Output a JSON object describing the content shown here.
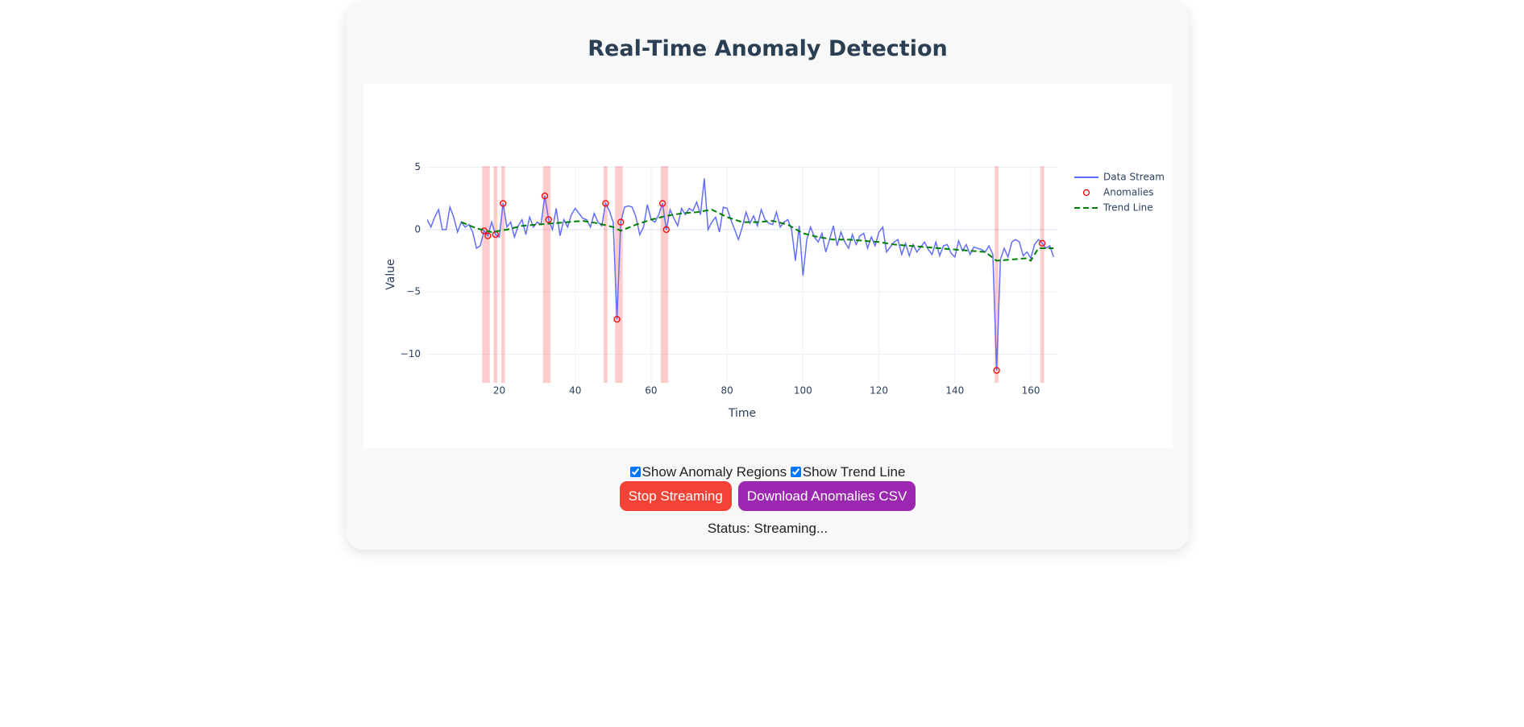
{
  "title": "Real-Time Anomaly Detection",
  "chart_data": {
    "type": "line",
    "x_label": "Time",
    "y_label": "Value",
    "xlim": [
      1,
      167
    ],
    "ylim": [
      -12.3,
      5.1
    ],
    "xticks": [
      20,
      40,
      60,
      80,
      100,
      120,
      140,
      160
    ],
    "yticks": [
      {
        "value": -10,
        "label": "−10"
      },
      {
        "value": -5,
        "label": "−5"
      },
      0,
      5
    ],
    "grid": true,
    "legend": "right",
    "series": [
      {
        "name": "Data Stream",
        "mode": "lines",
        "color": "#636efa",
        "x": [
          1,
          2,
          3,
          4,
          5,
          6,
          7,
          8,
          9,
          10,
          11,
          12,
          13,
          14,
          15,
          16,
          17,
          18,
          19,
          20,
          21,
          22,
          23,
          24,
          25,
          26,
          27,
          28,
          29,
          30,
          31,
          32,
          33,
          34,
          35,
          36,
          37,
          38,
          39,
          40,
          41,
          42,
          43,
          44,
          45,
          46,
          47,
          48,
          49,
          50,
          51,
          52,
          53,
          54,
          55,
          56,
          57,
          58,
          59,
          60,
          61,
          62,
          63,
          64,
          65,
          66,
          67,
          68,
          69,
          70,
          71,
          72,
          73,
          74,
          75,
          76,
          77,
          78,
          79,
          80,
          81,
          82,
          83,
          84,
          85,
          86,
          87,
          88,
          89,
          90,
          91,
          92,
          93,
          94,
          95,
          96,
          97,
          98,
          99,
          100,
          101,
          102,
          103,
          104,
          105,
          106,
          107,
          108,
          109,
          110,
          111,
          112,
          113,
          114,
          115,
          116,
          117,
          118,
          119,
          120,
          121,
          122,
          123,
          124,
          125,
          126,
          127,
          128,
          129,
          130,
          131,
          132,
          133,
          134,
          135,
          136,
          137,
          138,
          139,
          140,
          141,
          142,
          143,
          144,
          145,
          146,
          147,
          148,
          149,
          150,
          151,
          152,
          153,
          154,
          155,
          156,
          157,
          158,
          159,
          160,
          161,
          162,
          163,
          164,
          165,
          166
        ],
        "values": [
          0.8,
          0.2,
          1.0,
          1.6,
          0,
          0,
          1.8,
          1.0,
          -0.2,
          0.6,
          0.2,
          0.4,
          -0.2,
          -1.5,
          -1.3,
          -0.1,
          -0.5,
          0.6,
          -0.4,
          -0.6,
          2.1,
          0.2,
          0.6,
          -0.6,
          0.3,
          0.8,
          -0.4,
          1.0,
          0.2,
          0.6,
          0.4,
          2.7,
          0.8,
          0,
          1.7,
          -0.5,
          0.8,
          0.2,
          1.2,
          1.7,
          1.3,
          0.9,
          0.8,
          0.2,
          1.3,
          0.6,
          0.3,
          2.1,
          1.5,
          0.6,
          -7.2,
          0.6,
          1.8,
          1.9,
          1.8,
          1.0,
          -0.4,
          0.2,
          2.0,
          0.8,
          0.6,
          1.2,
          2.1,
          0,
          1.6,
          0.9,
          0.3,
          1.7,
          1.2,
          1.7,
          1.5,
          2.2,
          1.2,
          4.1,
          0,
          0.6,
          1.0,
          -0.2,
          1.8,
          1.7,
          0.8,
          0,
          -0.8,
          0.2,
          1.4,
          0.5,
          1.1,
          0.3,
          1.6,
          0.8,
          0.5,
          0.4,
          1.4,
          0.2,
          0.6,
          0.8,
          0,
          -2.5,
          0.3,
          -3.7,
          -0.8,
          0.2,
          -0.6,
          -1,
          -0.3,
          -1.8,
          -0.8,
          0.3,
          -1.3,
          -0.2,
          -1.0,
          -1.5,
          -0.4,
          -1.2,
          -0.5,
          -0.3,
          -1.5,
          -0.6,
          -1.3,
          -0.2,
          0.2,
          -1.8,
          -1.4,
          -1.0,
          -0.8,
          -2.0,
          -1.1,
          -2.1,
          -1.2,
          -1.8,
          -1.4,
          -1.0,
          -1.6,
          -2.0,
          -1.0,
          -2.1,
          -1.3,
          -1.2,
          -1.9,
          -2.2,
          -0.9,
          -1.7,
          -1.2,
          -2.0,
          -1.4,
          -1.5,
          -1.6,
          -1.8,
          -1.3,
          -2.0,
          -11.3,
          -2.4,
          -1.5,
          -2.2,
          -1.0,
          -0.8,
          -1.0,
          -2.1,
          -1.8,
          -2.3,
          -1.2,
          -0.8,
          -1.1,
          -1.5,
          -1.3,
          -2.2
        ]
      },
      {
        "name": "Anomalies",
        "mode": "markers",
        "color": "#ff0000",
        "x": [
          16,
          17,
          19,
          21,
          32,
          33,
          48,
          51,
          52,
          63,
          64,
          151,
          163
        ],
        "values": [
          -0.1,
          -0.5,
          -0.4,
          2.1,
          2.7,
          0.8,
          2.1,
          -7.2,
          0.6,
          2.1,
          0,
          -11.3,
          -1.1
        ]
      },
      {
        "name": "Trend Line",
        "mode": "dash",
        "color": "#008000",
        "x": [
          10,
          14,
          18,
          22,
          26,
          30,
          34,
          38,
          42,
          46,
          50,
          52,
          56,
          60,
          64,
          68,
          72,
          76,
          80,
          84,
          88,
          92,
          96,
          100,
          104,
          108,
          112,
          116,
          120,
          124,
          128,
          132,
          136,
          140,
          144,
          148,
          151,
          155,
          159,
          160,
          162,
          166
        ],
        "values": [
          0.6,
          0.1,
          -0.2,
          0,
          0.3,
          0.4,
          0.5,
          0.6,
          0.7,
          0.5,
          0.2,
          -0.1,
          0.4,
          0.8,
          1.1,
          1.3,
          1.4,
          1.6,
          1.0,
          0.6,
          0.6,
          0.7,
          0.4,
          -0.3,
          -0.6,
          -0.8,
          -0.8,
          -0.9,
          -1.0,
          -1.2,
          -1.3,
          -1.4,
          -1.5,
          -1.6,
          -1.7,
          -1.8,
          -2.5,
          -2.4,
          -2.3,
          -2.5,
          -1.5,
          -1.5
        ]
      }
    ],
    "anomaly_regions": {
      "color": "rgba(255,0,0,0.2)",
      "ranges": [
        [
          15.5,
          17.5
        ],
        [
          18.5,
          19.5
        ],
        [
          20.5,
          21.5
        ],
        [
          31.5,
          33.5
        ],
        [
          47.5,
          48.5
        ],
        [
          50.5,
          52.5
        ],
        [
          62.5,
          64.5
        ],
        [
          150.5,
          151.5
        ],
        [
          162.5,
          163.5
        ]
      ]
    }
  },
  "controls": {
    "checkboxes": [
      {
        "label": "Show Anomaly Regions",
        "checked": true
      },
      {
        "label": "Show Trend Line",
        "checked": true
      }
    ],
    "buttons": [
      {
        "label": "Stop Streaming",
        "color": "#f44336"
      },
      {
        "label": "Download Anomalies CSV",
        "color": "#9c27b0"
      }
    ],
    "status": "Status: Streaming..."
  }
}
